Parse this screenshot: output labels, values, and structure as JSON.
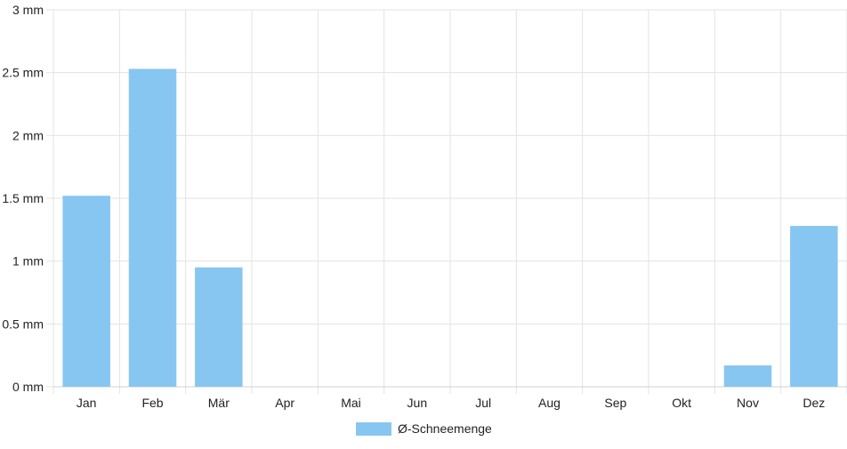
{
  "chart_data": {
    "type": "bar",
    "categories": [
      "Jan",
      "Feb",
      "Mär",
      "Apr",
      "Mai",
      "Jun",
      "Jul",
      "Aug",
      "Sep",
      "Okt",
      "Nov",
      "Dez"
    ],
    "series": [
      {
        "name": "Ø-Schneemenge",
        "values": [
          1.52,
          2.53,
          0.95,
          0,
          0,
          0,
          0,
          0,
          0,
          0,
          0.17,
          1.28
        ],
        "color": "#88c6f2"
      }
    ],
    "y_ticks": [
      "0 mm",
      "0.5 mm",
      "1 mm",
      "1.5 mm",
      "2 mm",
      "2.5 mm",
      "3 mm"
    ],
    "ylim": [
      0,
      3
    ],
    "grid": true,
    "legend": "bottom-center"
  }
}
